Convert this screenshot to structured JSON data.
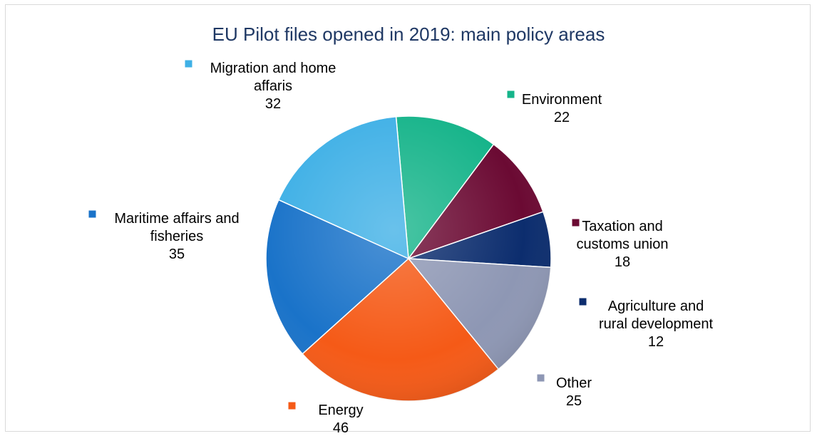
{
  "chart_data": {
    "type": "pie",
    "title": "EU Pilot files opened in 2019: main policy areas",
    "slices": [
      {
        "name": "Environment",
        "value": 22,
        "label_lines": [
          "Environment"
        ],
        "color": "#16b48a"
      },
      {
        "name": "Taxation and customs union",
        "value": 18,
        "label_lines": [
          "Taxation and",
          "customs union"
        ],
        "color": "#6b0a33"
      },
      {
        "name": "Agriculture and rural development",
        "value": 12,
        "label_lines": [
          "Agriculture and",
          "rural development"
        ],
        "color": "#0c2d6e"
      },
      {
        "name": "Other",
        "value": 25,
        "label_lines": [
          "Other"
        ],
        "color": "#8e97b4"
      },
      {
        "name": "Energy",
        "value": 46,
        "label_lines": [
          "Energy"
        ],
        "color": "#f55a17"
      },
      {
        "name": "Maritime affairs and fisheries",
        "value": 35,
        "label_lines": [
          "Maritime affairs and",
          "fisheries"
        ],
        "color": "#1a73c9"
      },
      {
        "name": "Migration and home affaris",
        "value": 32,
        "label_lines": [
          "Migration and home",
          "affaris"
        ],
        "color": "#3fb0e6"
      }
    ]
  }
}
